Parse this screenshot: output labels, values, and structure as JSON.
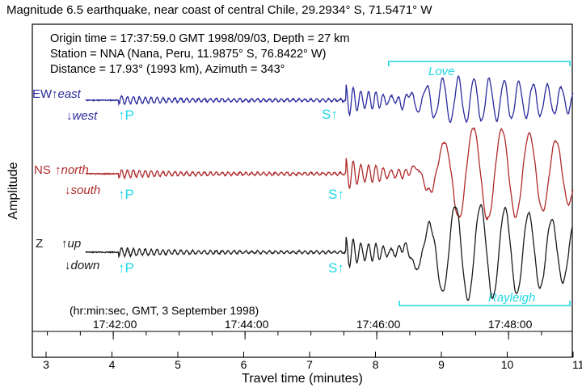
{
  "chart_data": {
    "type": "line",
    "title": "Magnitude 6.5 earthquake, near coast of central Chile, 29.2934° S, 71.5471° W",
    "info": {
      "origin": "Origin time = 17:37:59.0 GMT 1998/09/03, Depth = 27 km",
      "station": "Station = NNA (Nana, Peru, 11.9875° S, 76.8422° W)",
      "distance": "Distance = 17.93° (1993 km), Azimuth = 343°"
    },
    "xlabel": "Travel time (minutes)",
    "ylabel": "Amplitude",
    "xlim": [
      2.85,
      11.0
    ],
    "x_ticks": [
      "3",
      "4",
      "5",
      "6",
      "7",
      "8",
      "9",
      "10",
      "11"
    ],
    "clock_caption": "(hr:min:sec, GMT, 3 September 1998)",
    "clock_ticks": [
      {
        "label": "17:42:00",
        "minutes": 4.02
      },
      {
        "label": "17:44:00",
        "minutes": 6.02
      },
      {
        "label": "17:46:00",
        "minutes": 8.02
      },
      {
        "label": "17:48:00",
        "minutes": 10.02
      }
    ],
    "series": [
      {
        "name": "EW",
        "up": "↑east",
        "down": "↓west",
        "color": "#2a2a9e",
        "p_arrival": 4.1,
        "s_arrival": 7.55,
        "surface_start": 8.2,
        "peak": 3.0
      },
      {
        "name": "NS",
        "up": "↑north",
        "down": "↓south",
        "color": "#b02a2a",
        "p_arrival": 4.1,
        "s_arrival": 7.55,
        "surface_start": 8.45,
        "peak": 3.8
      },
      {
        "name": "Z",
        "up": "↑up",
        "down": "↓down",
        "color": "#1a1a1a",
        "p_arrival": 4.1,
        "s_arrival": 7.55,
        "surface_start": 8.3,
        "peak": 3.9
      }
    ],
    "phases": {
      "p_label": "↑P",
      "s_label": "S↑"
    },
    "wave_labels": {
      "love": {
        "label": "Love",
        "from": 8.2,
        "to": 11.0
      },
      "rayleigh": {
        "label": "Rayleigh",
        "from": 8.3,
        "to": 11.0
      }
    },
    "phase_color": "#1fd8e6"
  }
}
